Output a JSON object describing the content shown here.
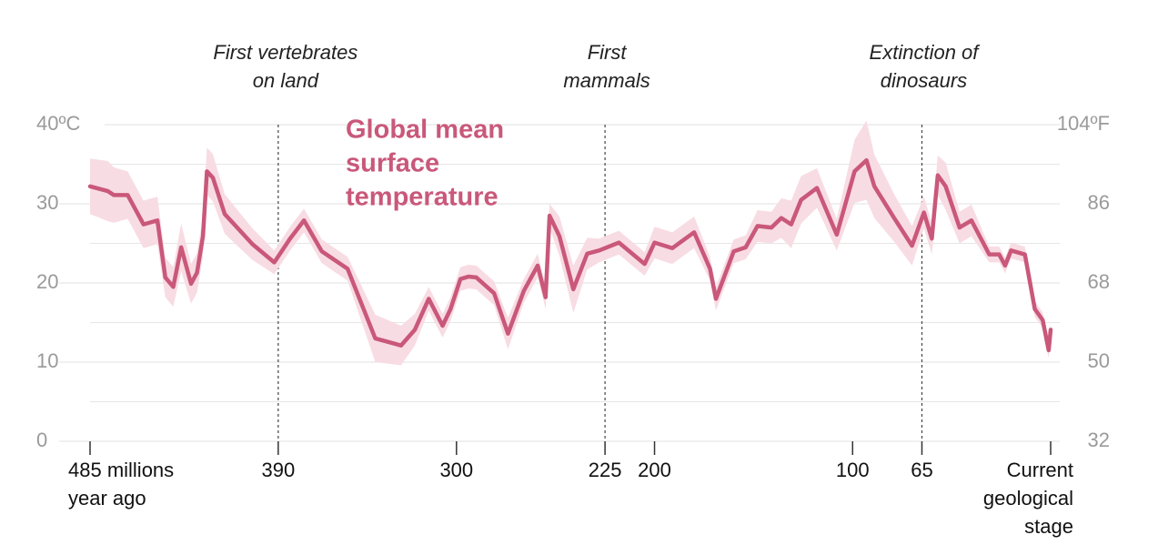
{
  "chart_data": {
    "type": "line",
    "title": [
      "Global mean",
      "surface",
      "temperature"
    ],
    "title_color": "#c9587a",
    "x": [
      485,
      476,
      473,
      466,
      458,
      451,
      447,
      443,
      439,
      434,
      431,
      428,
      426,
      423,
      417,
      403,
      392,
      384,
      377,
      368,
      355,
      341,
      328,
      321,
      314,
      307,
      303,
      298,
      294,
      290,
      281,
      274,
      266,
      259,
      255,
      253,
      248,
      241,
      234,
      228,
      218,
      205,
      200,
      191,
      180,
      172,
      169,
      160,
      154,
      148,
      141,
      136,
      131,
      126,
      118,
      108,
      99,
      93,
      89,
      79,
      70,
      64,
      60,
      57,
      53,
      46,
      40,
      31,
      26,
      23,
      20,
      13,
      8,
      4,
      1,
      0
    ],
    "series": [
      {
        "name": "Global mean surface temperature",
        "color": "#c9587a",
        "band_color": "#f8dce3",
        "values": [
          32.2,
          31.6,
          31.1,
          31.1,
          27.4,
          27.9,
          20.7,
          19.5,
          24.5,
          19.9,
          21.3,
          25.9,
          34.1,
          33.3,
          28.7,
          24.9,
          22.6,
          25.6,
          27.9,
          24.0,
          21.8,
          13.0,
          12.1,
          14.1,
          18.0,
          14.6,
          16.7,
          20.5,
          20.8,
          20.7,
          18.7,
          13.6,
          19.0,
          22.2,
          18.2,
          28.5,
          25.9,
          19.2,
          23.7,
          24.1,
          25.1,
          22.4,
          25.1,
          24.4,
          26.4,
          21.8,
          18.0,
          24.0,
          24.5,
          27.2,
          27.0,
          28.2,
          27.4,
          30.5,
          32.0,
          26.1,
          34.1,
          35.5,
          32.2,
          28.2,
          24.7,
          28.9,
          25.6,
          33.6,
          32.2,
          27.0,
          27.9,
          23.6,
          23.6,
          22.2,
          24.1,
          23.6,
          16.7,
          15.3,
          11.5,
          14.1
        ],
        "uncertainty": [
          3.5,
          3.8,
          3.5,
          3,
          3,
          3,
          2.5,
          2.5,
          3,
          2.5,
          2.5,
          2.5,
          3,
          3,
          2.5,
          2,
          1.5,
          1.5,
          1.5,
          1.5,
          1.5,
          3,
          2.5,
          2,
          1.5,
          1.5,
          1.5,
          1.5,
          1.5,
          1.5,
          1.5,
          2,
          1.5,
          1.5,
          1.5,
          1.5,
          2.5,
          3,
          2,
          1.5,
          1.5,
          1.5,
          2,
          2,
          2,
          1.5,
          1.5,
          1.5,
          1.5,
          2,
          2,
          2.5,
          3,
          3,
          2.5,
          2,
          4,
          5,
          4,
          3,
          2.5,
          2,
          2,
          2.5,
          3,
          2,
          2,
          1,
          1,
          1,
          1,
          1,
          1,
          1,
          1,
          1
        ]
      }
    ],
    "xlim": [
      485,
      0
    ],
    "xticks": [
      {
        "value": 485,
        "label": [
          "485 millions",
          "year ago"
        ]
      },
      390,
      300,
      225,
      200,
      100,
      65,
      {
        "value": 0,
        "label": [
          "Current",
          "geological",
          "stage"
        ]
      }
    ],
    "ylim": [
      0,
      40
    ],
    "yticks": [
      0,
      10,
      20,
      30,
      {
        "value": 40,
        "label": "40ºC"
      }
    ],
    "minor_yticks": [
      5,
      15,
      25,
      35
    ],
    "y2lim": [
      32,
      104
    ],
    "y2ticks": [
      32,
      50,
      68,
      86,
      {
        "value": 104,
        "label": "104ºF"
      }
    ],
    "grid": true,
    "annotations": [
      {
        "x": 390,
        "text": [
          "First vertebrates",
          "on land"
        ]
      },
      {
        "x": 225,
        "text": [
          "First",
          "mammals"
        ]
      },
      {
        "x": 65,
        "text": [
          "Extinction of",
          "dinosaurs"
        ]
      }
    ]
  }
}
